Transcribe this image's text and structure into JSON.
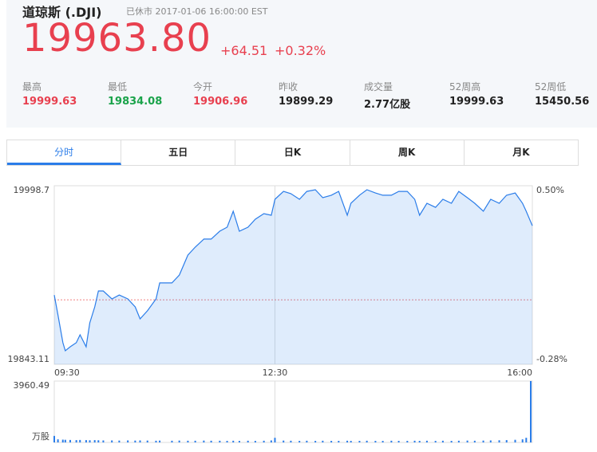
{
  "header": {
    "name": "道琼斯 (.DJI)",
    "status": "已休市 2017-01-06 16:00:00 EST",
    "price": "19963.80",
    "change": "+64.51",
    "change_percent": "+0.32%"
  },
  "stats": [
    {
      "label": "最高",
      "value": "19999.63"
    },
    {
      "label": "最低",
      "value": "19834.08"
    },
    {
      "label": "今开",
      "value": "19906.96"
    },
    {
      "label": "昨收",
      "value": "19899.29"
    },
    {
      "label": "成交量",
      "value": "2.77亿股"
    },
    {
      "label": "52周高",
      "value": "19999.63"
    },
    {
      "label": "52周低",
      "value": "15450.56"
    }
  ],
  "tabs": [
    "分时",
    "五日",
    "日K",
    "周K",
    "月K"
  ],
  "chart_data": [
    {
      "type": "line",
      "xlim": [
        "09:30",
        "16:00"
      ],
      "xticks": [
        "09:30",
        "12:30",
        "16:00"
      ],
      "ylim": [
        19843.11,
        19998.7
      ],
      "yticks": [
        19843.11,
        19998.7
      ],
      "y2lim": [
        -0.28,
        0.5
      ],
      "y2ticks": [
        {
          "value": -0.28,
          "label": "-0.28%"
        },
        {
          "value": 0.5,
          "label": "0.50%"
        }
      ],
      "x": [
        "09:30",
        "09:33",
        "09:37",
        "09:39",
        "09:43",
        "09:48",
        "09:51",
        "09:56",
        "09:59",
        "10:03",
        "10:06",
        "10:10",
        "10:17",
        "10:23",
        "10:30",
        "10:36",
        "10:40",
        "10:46",
        "10:53",
        "10:56",
        "11:06",
        "11:12",
        "11:19",
        "11:25",
        "11:32",
        "11:38",
        "11:45",
        "11:51",
        "11:56",
        "12:01",
        "12:08",
        "12:14",
        "12:21",
        "12:27",
        "12:30",
        "12:37",
        "12:43",
        "12:50",
        "12:56",
        "13:03",
        "13:09",
        "13:16",
        "13:22",
        "13:29",
        "13:32",
        "13:39",
        "13:45",
        "13:52",
        "13:58",
        "14:05",
        "14:11",
        "14:18",
        "14:24",
        "14:28",
        "14:34",
        "14:41",
        "14:47",
        "14:54",
        "15:00",
        "15:07",
        "15:13",
        "15:20",
        "15:26",
        "15:33",
        "15:39",
        "15:46",
        "15:52",
        "15:55",
        "16:00"
      ],
      "series": [
        {
          "color": "#2b7de9",
          "values": [
            19903.5,
            19886.2,
            19861.9,
            19854.9,
            19858.4,
            19861.9,
            19868.8,
            19858.4,
            19879.2,
            19893.1,
            19907.0,
            19907.0,
            19900.1,
            19903.5,
            19900.1,
            19893.1,
            19882.7,
            19889.7,
            19900.1,
            19914.0,
            19914.0,
            19920.9,
            19938.3,
            19945.2,
            19952.2,
            19952.2,
            19959.1,
            19962.6,
            19976.5,
            19959.1,
            19962.6,
            19969.5,
            19974.4,
            19973.0,
            19986.9,
            19993.8,
            19991.8,
            19986.9,
            19993.8,
            19995.2,
            19988.3,
            19990.4,
            19993.8,
            19973.0,
            19983.4,
            19990.4,
            19995.2,
            19992.4,
            19990.4,
            19990.4,
            19993.8,
            19993.8,
            19986.9,
            19973.0,
            19983.4,
            19979.9,
            19986.9,
            19983.4,
            19993.8,
            19988.3,
            19983.4,
            19976.5,
            19986.9,
            19983.4,
            19990.4,
            19992.4,
            19983.4,
            19976.5,
            19963.8
          ]
        }
      ]
    },
    {
      "type": "bar",
      "y_unit": "万股",
      "xlim": [
        "09:30",
        "16:00"
      ],
      "ylim": [
        0,
        3960.49
      ],
      "yticks": [
        3960.49
      ],
      "x": [
        "09:30",
        "09:33",
        "09:37",
        "09:39",
        "09:43",
        "09:48",
        "09:51",
        "09:56",
        "09:59",
        "10:03",
        "10:06",
        "10:10",
        "10:17",
        "10:23",
        "10:30",
        "10:36",
        "10:40",
        "10:46",
        "10:53",
        "10:56",
        "11:06",
        "11:12",
        "11:19",
        "11:25",
        "11:32",
        "11:38",
        "11:45",
        "11:51",
        "11:56",
        "12:01",
        "12:08",
        "12:14",
        "12:21",
        "12:27",
        "12:30",
        "12:37",
        "12:43",
        "12:50",
        "12:56",
        "13:03",
        "13:09",
        "13:16",
        "13:22",
        "13:29",
        "13:32",
        "13:39",
        "13:45",
        "13:52",
        "13:58",
        "14:05",
        "14:11",
        "14:18",
        "14:24",
        "14:28",
        "14:34",
        "14:41",
        "14:47",
        "14:54",
        "15:00",
        "15:07",
        "15:13",
        "15:20",
        "15:26",
        "15:33",
        "15:39",
        "15:46",
        "15:52",
        "15:55",
        "16:00"
      ],
      "series": [
        {
          "color": "#2b7de9",
          "values": [
            420,
            200,
            180,
            170,
            160,
            150,
            160,
            150,
            140,
            150,
            140,
            130,
            130,
            120,
            130,
            120,
            130,
            120,
            110,
            120,
            110,
            120,
            110,
            110,
            120,
            110,
            110,
            100,
            110,
            100,
            110,
            100,
            110,
            130,
            300,
            120,
            110,
            100,
            110,
            100,
            110,
            100,
            100,
            110,
            100,
            100,
            110,
            100,
            100,
            110,
            100,
            100,
            110,
            100,
            110,
            100,
            110,
            100,
            110,
            120,
            110,
            120,
            130,
            140,
            150,
            170,
            200,
            300,
            3960.49
          ]
        }
      ]
    }
  ]
}
